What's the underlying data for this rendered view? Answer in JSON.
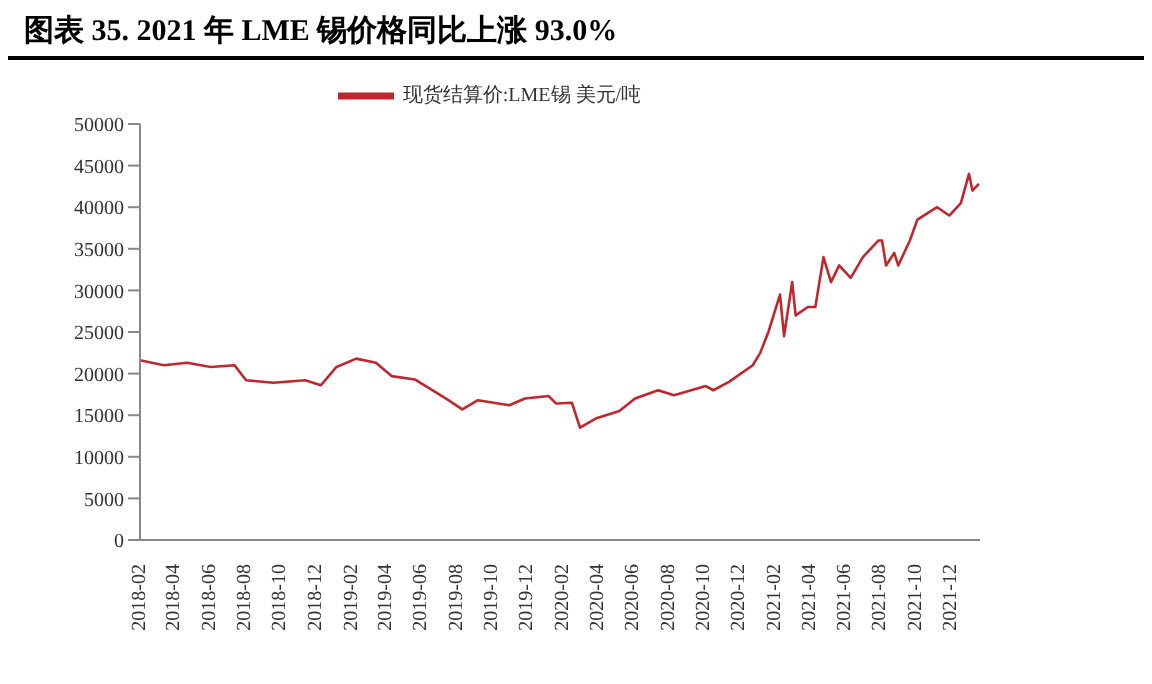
{
  "chart_data": {
    "type": "line",
    "title": "图表 35. 2021 年 LME 锡价格同比上涨 93.0%",
    "legend": "top",
    "grid": false,
    "marker": "none",
    "line_style": "solid",
    "xlim": [
      "2018-02-01",
      "2022-01-20"
    ],
    "xticks": [
      "2018-02",
      "2018-04",
      "2018-06",
      "2018-08",
      "2018-10",
      "2018-12",
      "2019-02",
      "2019-04",
      "2019-06",
      "2019-08",
      "2019-10",
      "2019-12",
      "2020-02",
      "2020-04",
      "2020-06",
      "2020-08",
      "2020-10",
      "2020-12",
      "2021-02",
      "2021-04",
      "2021-06",
      "2021-08",
      "2021-10",
      "2021-12"
    ],
    "ylim": [
      0,
      50000
    ],
    "yticks": [
      0,
      5000,
      10000,
      15000,
      20000,
      25000,
      30000,
      35000,
      40000,
      45000,
      50000
    ],
    "x": [
      "2018-02-01",
      "2018-03-14",
      "2018-04-23",
      "2018-06-03",
      "2018-07-14",
      "2018-08-03",
      "2018-09-19",
      "2018-11-13",
      "2018-12-10",
      "2019-01-06",
      "2019-02-09",
      "2019-03-15",
      "2019-04-11",
      "2019-05-21",
      "2019-07-14",
      "2019-08-11",
      "2019-09-07",
      "2019-10-31",
      "2019-11-27",
      "2020-01-07",
      "2020-01-20",
      "2020-02-16",
      "2020-03-01",
      "2020-03-28",
      "2020-05-08",
      "2020-06-04",
      "2020-07-14",
      "2020-08-10",
      "2020-10-04",
      "2020-10-17",
      "2020-11-13",
      "2020-12-24",
      "2021-01-06",
      "2021-01-20",
      "2021-02-09",
      "2021-02-16",
      "2021-03-02",
      "2021-03-08",
      "2021-03-29",
      "2021-04-11",
      "2021-04-25",
      "2021-05-08",
      "2021-05-22",
      "2021-06-11",
      "2021-07-02",
      "2021-07-29",
      "2021-08-04",
      "2021-08-11",
      "2021-08-25",
      "2021-09-01",
      "2021-09-21",
      "2021-10-04",
      "2021-11-07",
      "2021-11-28",
      "2021-12-18",
      "2022-01-01",
      "2022-01-07",
      "2022-01-18"
    ],
    "series": [
      {
        "name": "现货结算价:LME锡 美元/吨",
        "color": "#c0272d",
        "values": [
          21600,
          21000,
          21300,
          20800,
          21000,
          19200,
          18900,
          19200,
          18600,
          20800,
          21800,
          21300,
          19700,
          19300,
          17000,
          15700,
          16800,
          16200,
          17000,
          17300,
          16400,
          16500,
          13500,
          14600,
          15500,
          17000,
          18000,
          17400,
          18500,
          18000,
          19000,
          21000,
          22500,
          25000,
          29500,
          24500,
          31000,
          27000,
          28000,
          28000,
          34000,
          31000,
          33000,
          31500,
          34000,
          36000,
          36000,
          33000,
          34500,
          33000,
          36000,
          38500,
          40000,
          39000,
          40500,
          44000,
          42000,
          42800
        ]
      }
    ]
  }
}
